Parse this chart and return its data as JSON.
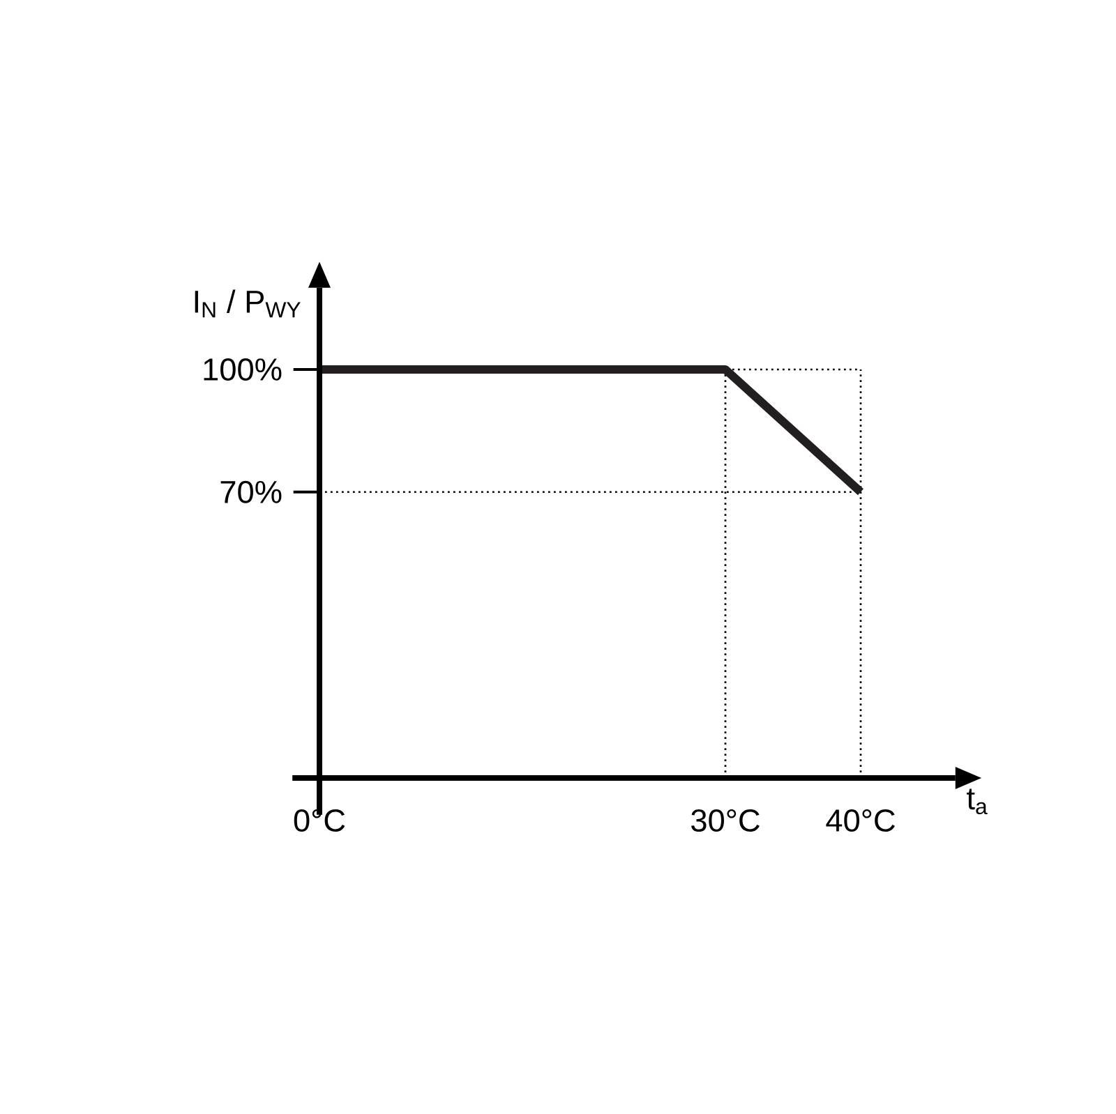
{
  "chart_data": {
    "type": "line",
    "xlabel": "t$_{a}$",
    "ylabel": "I$_{N}$ / P$_{WY}$",
    "x": [
      0,
      30,
      40
    ],
    "series": [
      {
        "color": "#231f20",
        "values": [
          100,
          100,
          70
        ]
      }
    ],
    "xlim": [
      -2,
      47
    ],
    "ylim": [
      -9,
      120
    ],
    "xticks": [
      {
        "value": 0,
        "label": "0°C"
      },
      {
        "value": 30,
        "label": "30°C"
      },
      {
        "value": 40,
        "label": "40°C"
      }
    ],
    "yticks": [
      {
        "value": 70,
        "label": "70%"
      },
      {
        "value": 100,
        "label": "100%"
      }
    ],
    "ref_lines": [
      {
        "axis": "x",
        "value": 30,
        "line_style": "dotted"
      },
      {
        "axis": "x",
        "value": 40,
        "line_style": "dotted"
      },
      {
        "axis": "y",
        "value": 70,
        "line_style": "dotted"
      },
      {
        "axis": "y",
        "value": 100,
        "line_style": "dotted"
      }
    ],
    "grid": false,
    "legend": false,
    "line_style": "solid"
  }
}
